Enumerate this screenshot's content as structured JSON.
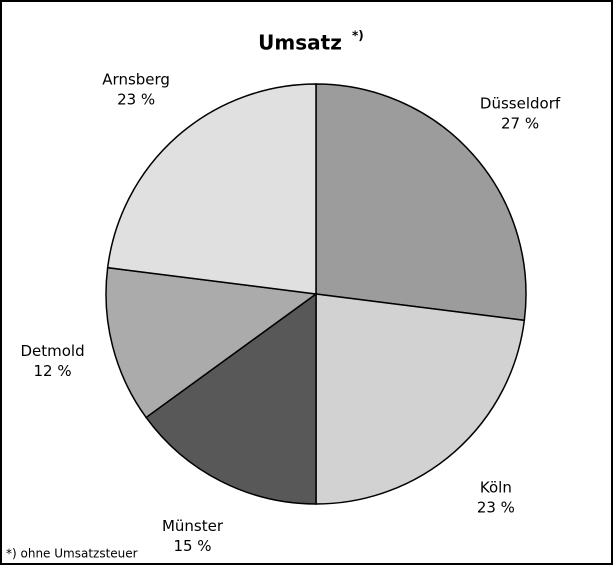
{
  "chart_data": {
    "type": "pie",
    "title": "Umsatz",
    "title_marker": "*)",
    "categories": [
      "Düsseldorf",
      "Köln",
      "Münster",
      "Detmold",
      "Arnsberg"
    ],
    "values": [
      27,
      23,
      15,
      12,
      23
    ],
    "value_labels": [
      "27 %",
      "23 %",
      "15 %",
      "12 %",
      "23 %"
    ],
    "colors": [
      "#9c9c9c",
      "#d2d2d2",
      "#585858",
      "#ababab",
      "#e0e0e0"
    ],
    "footnote": "*) ohne Umsatzsteuer"
  }
}
